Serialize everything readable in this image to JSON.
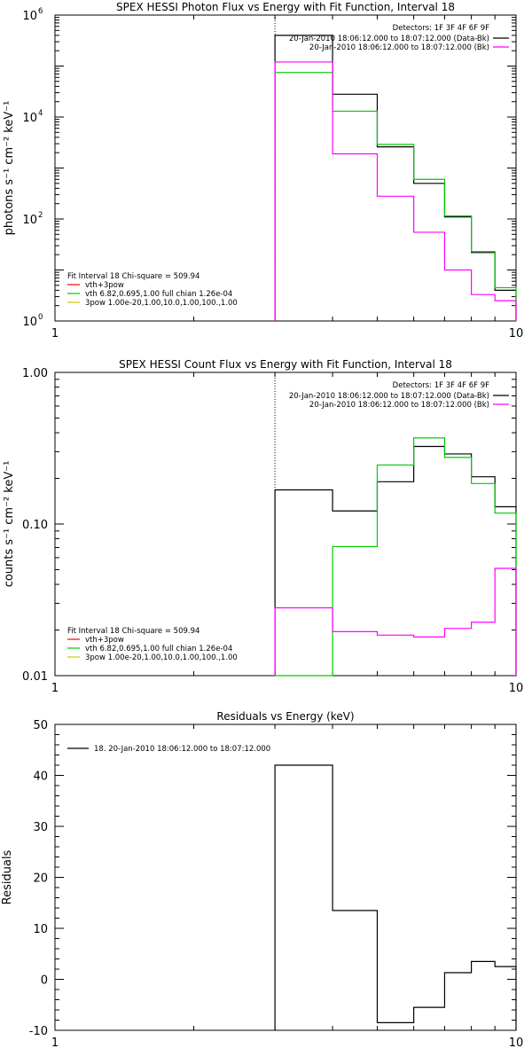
{
  "colors": {
    "data": "#000000",
    "bk": "#ff00ff",
    "red": "#ff0000",
    "green": "#00cc00",
    "yellow": "#cccc00"
  },
  "chart_data": [
    {
      "type": "line",
      "title": "SPEX HESSI Photon Flux vs Energy with Fit Function, Interval 18",
      "ylabel": "photons s⁻¹ cm⁻² keV⁻¹",
      "xlabel": "",
      "xscale": "log",
      "yscale": "log",
      "xlim": [
        1,
        10
      ],
      "ylim": [
        1,
        1000000
      ],
      "xticks": [
        {
          "v": 1,
          "label": "1"
        },
        {
          "v": 10,
          "label": "10"
        }
      ],
      "yticks": [
        {
          "v": 1,
          "base": "10",
          "exp": "0"
        },
        {
          "v": 100,
          "base": "10",
          "exp": "2"
        },
        {
          "v": 10000,
          "base": "10",
          "exp": "4"
        },
        {
          "v": 1000000,
          "base": "10",
          "exp": "6"
        }
      ],
      "vline": 3,
      "legend_top": {
        "detectors": "Detectors: 1F 3F 4F 6F 9F",
        "data": "20-Jan-2010 18:06:12.000 to 18:07:12.000 (Data-Bk)",
        "bk": "20-Jan-2010 18:06:12.000 to 18:07:12.000 (Bk)"
      },
      "legend_bottom": {
        "header": "Fit Interval 18    Chi-square = 509.94",
        "red": "vth+3pow",
        "green": "vth 6.82,0.695,1.00  full chian 1.26e-04",
        "yellow": "3pow 1.00e-20,1.00,10.0,1.00,100.,1.00"
      },
      "edges": [
        3,
        4,
        5,
        6,
        7,
        8,
        9,
        10
      ],
      "series": [
        {
          "id": "data",
          "values": [
            400000,
            28000,
            2600,
            500,
            110,
            22,
            4
          ]
        },
        {
          "id": "green",
          "values": [
            75000,
            13000,
            2900,
            600,
            115,
            23,
            4.5
          ]
        },
        {
          "id": "bk",
          "values": [
            120000,
            1900,
            280,
            55,
            10,
            3.3,
            2.5
          ]
        }
      ]
    },
    {
      "type": "line",
      "title": "SPEX HESSI Count Flux vs Energy with Fit Function, Interval 18",
      "ylabel": "counts s⁻¹ cm⁻² keV⁻¹",
      "xlabel": "",
      "xscale": "log",
      "yscale": "log",
      "xlim": [
        1,
        10
      ],
      "ylim": [
        0.01,
        1
      ],
      "xticks": [
        {
          "v": 1,
          "label": "1"
        },
        {
          "v": 10,
          "label": "10"
        }
      ],
      "yticks": [
        {
          "v": 0.01,
          "label": "0.01"
        },
        {
          "v": 0.1,
          "label": "0.10"
        },
        {
          "v": 1,
          "label": "1.00"
        }
      ],
      "vline": 3,
      "legend_top": {
        "detectors": "Detectors: 1F 3F 4F 6F 9F",
        "data": "20-Jan-2010 18:06:12.000 to 18:07:12.000 (Data-Bk)",
        "bk": "20-Jan-2010 18:06:12.000 to 18:07:12.000 (Bk)"
      },
      "legend_bottom": {
        "header": "Fit Interval 18    Chi-square = 509.94",
        "red": "vth+3pow",
        "green": "vth 6.82,0.695,1.00  full chian 1.26e-04",
        "yellow": "3pow 1.00e-20,1.00,10.0,1.00,100.,1.00"
      },
      "edges": [
        3,
        4,
        5,
        6,
        7,
        8,
        9,
        10
      ],
      "series": [
        {
          "id": "data",
          "values": [
            0.168,
            0.122,
            0.19,
            0.325,
            0.29,
            0.205,
            0.13
          ]
        },
        {
          "id": "green",
          "values": [
            0.0098,
            0.071,
            0.245,
            0.37,
            0.275,
            0.185,
            0.118
          ]
        },
        {
          "id": "bk",
          "values": [
            0.028,
            0.0195,
            0.0185,
            0.018,
            0.0205,
            0.0225,
            0.051
          ]
        }
      ]
    },
    {
      "type": "line",
      "title": "Residuals vs Energy (keV)",
      "ylabel": "Residuals",
      "xlabel": "",
      "xscale": "log",
      "yscale": "linear",
      "xlim": [
        1,
        10
      ],
      "ylim": [
        -10,
        50
      ],
      "xticks": [
        {
          "v": 1,
          "label": "1"
        },
        {
          "v": 10,
          "label": "10"
        }
      ],
      "yticks": [
        {
          "v": -10,
          "label": "-10"
        },
        {
          "v": 0,
          "label": "0"
        },
        {
          "v": 10,
          "label": "10"
        },
        {
          "v": 20,
          "label": "20"
        },
        {
          "v": 30,
          "label": "30"
        },
        {
          "v": 40,
          "label": "40"
        },
        {
          "v": 50,
          "label": "50"
        }
      ],
      "legend_text": "18. 20-Jan-2010 18:06:12.000 to 18:07:12.000",
      "edges": [
        3,
        4,
        5,
        6,
        7,
        8,
        9,
        10
      ],
      "series": [
        {
          "id": "data",
          "values": [
            42,
            13.5,
            -8.5,
            -5.5,
            1.3,
            3.5,
            2.5
          ]
        }
      ]
    }
  ]
}
